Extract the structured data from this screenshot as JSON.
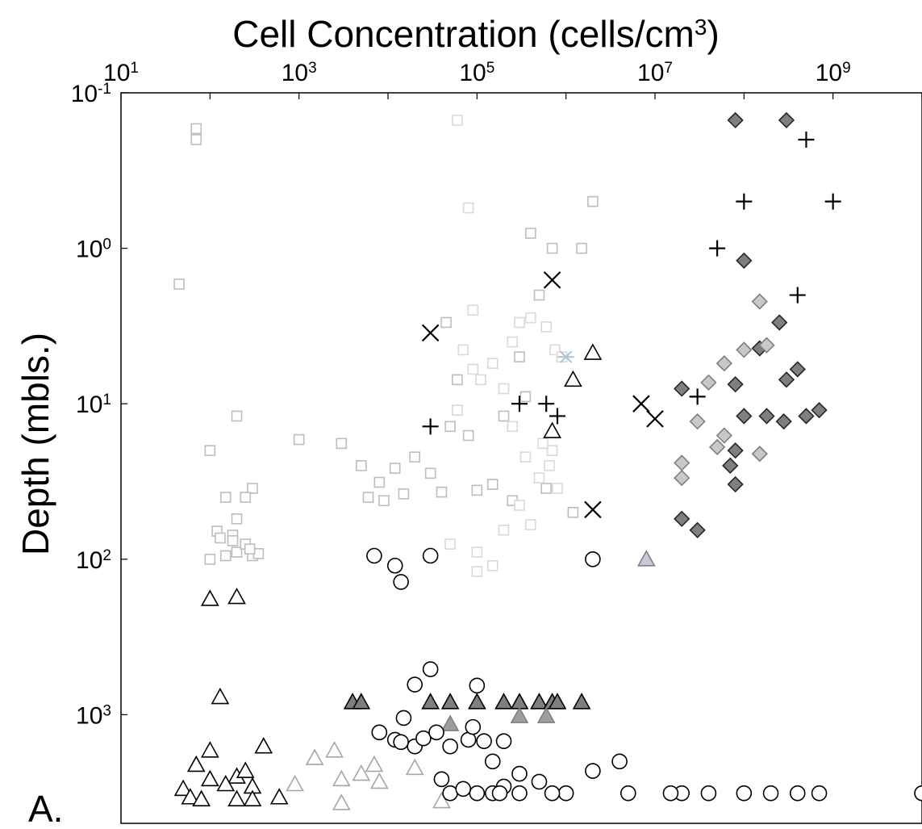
{
  "panel_label": "A.",
  "chart_data": {
    "type": "scatter",
    "title": "Cell Concentration (cells/cm3)",
    "title_main": "Cell Concentration (cells/cm",
    "title_sup": "3",
    "title_end": ")",
    "xlabel": "",
    "ylabel": "Depth (mbls.)",
    "x_scale": "log",
    "y_scale": "log",
    "y_inverted": true,
    "x_axis_position": "top",
    "xlim": [
      10,
      10000000000
    ],
    "ylim": [
      0.1,
      5000
    ],
    "grid": false,
    "legend": "none",
    "x_ticks": [
      {
        "base": "10",
        "exp": "1",
        "value": 10
      },
      {
        "base": "10",
        "exp": "3",
        "value": 1000
      },
      {
        "base": "10",
        "exp": "5",
        "value": 100000
      },
      {
        "base": "10",
        "exp": "7",
        "value": 10000000
      },
      {
        "base": "10",
        "exp": "9",
        "value": 1000000000
      }
    ],
    "y_ticks": [
      {
        "base": "10",
        "exp": "-1",
        "value": 0.1
      },
      {
        "base": "10",
        "exp": "0",
        "value": 1
      },
      {
        "base": "10",
        "exp": "1",
        "value": 10
      },
      {
        "base": "10",
        "exp": "2",
        "value": 100
      },
      {
        "base": "10",
        "exp": "3",
        "value": 1000
      }
    ],
    "series": [
      {
        "marker": "square",
        "fill": "#ffffff",
        "stroke": "#bdbdbd",
        "points": [
          [
            70,
            0.17
          ],
          [
            70,
            0.2
          ],
          [
            45,
            1.7
          ],
          [
            200,
            12
          ],
          [
            100,
            20
          ],
          [
            300,
            35
          ],
          [
            250,
            40
          ],
          [
            150,
            40
          ],
          [
            200,
            55
          ],
          [
            180,
            70
          ],
          [
            120,
            66
          ],
          [
            130,
            73
          ],
          [
            180,
            76
          ],
          [
            200,
            90
          ],
          [
            300,
            95
          ],
          [
            100,
            100
          ],
          [
            150,
            95
          ],
          [
            350,
            92
          ],
          [
            250,
            80
          ],
          [
            280,
            86
          ],
          [
            1000,
            17
          ],
          [
            3000,
            18
          ],
          [
            5000,
            25
          ],
          [
            8000,
            32
          ],
          [
            12000,
            26
          ],
          [
            20000,
            22
          ],
          [
            30000,
            28
          ],
          [
            50000,
            14
          ],
          [
            80000,
            16
          ],
          [
            150000,
            33
          ],
          [
            200000,
            12
          ],
          [
            300000,
            5
          ],
          [
            500000,
            2
          ],
          [
            700000,
            1
          ],
          [
            400000,
            0.8
          ],
          [
            60000,
            7
          ],
          [
            6000,
            40
          ],
          [
            9000,
            42
          ],
          [
            15000,
            38
          ],
          [
            40000,
            37
          ],
          [
            100000,
            36
          ],
          [
            250000,
            42
          ],
          [
            600000,
            35
          ],
          [
            350000,
            9
          ],
          [
            45000,
            3
          ],
          [
            1500000,
            1
          ],
          [
            2000000,
            0.5
          ],
          [
            1200000,
            50
          ]
        ]
      },
      {
        "marker": "square",
        "fill": "#ffffff",
        "stroke": "#d9d9d9",
        "points": [
          [
            60000,
            0.15
          ],
          [
            80000,
            0.55
          ],
          [
            90000,
            2.5
          ],
          [
            70000,
            4.5
          ],
          [
            110000,
            7
          ],
          [
            60000,
            11
          ],
          [
            200000,
            8
          ],
          [
            90000,
            6
          ],
          [
            150000,
            5.5
          ],
          [
            300000,
            3
          ],
          [
            400000,
            2.8
          ],
          [
            250000,
            4
          ],
          [
            600000,
            3.2
          ],
          [
            750000,
            4.5
          ],
          [
            900000,
            5
          ],
          [
            700000,
            20
          ],
          [
            500000,
            30
          ],
          [
            400000,
            60
          ],
          [
            200000,
            65
          ],
          [
            100000,
            90
          ],
          [
            50000,
            80
          ],
          [
            300000,
            45
          ],
          [
            800000,
            35
          ],
          [
            100000,
            120
          ],
          [
            150000,
            110
          ],
          [
            250000,
            14
          ],
          [
            350000,
            22
          ],
          [
            550000,
            18
          ],
          [
            650000,
            25
          ]
        ]
      },
      {
        "marker": "triangle",
        "fill": "#ffffff",
        "stroke": "#000000",
        "points": [
          [
            100,
            180
          ],
          [
            200,
            175
          ],
          [
            130,
            770
          ],
          [
            100,
            1700
          ],
          [
            70,
            2100
          ],
          [
            50,
            3000
          ],
          [
            100,
            2600
          ],
          [
            200,
            2500
          ],
          [
            400,
            1600
          ],
          [
            150,
            2800
          ],
          [
            250,
            2300
          ],
          [
            300,
            2900
          ],
          [
            60,
            3400
          ],
          [
            80,
            3500
          ],
          [
            200,
            3500
          ],
          [
            300,
            3500
          ],
          [
            600,
            3400
          ],
          [
            2000000,
            4.7
          ],
          [
            1200000,
            7
          ],
          [
            700000,
            15
          ]
        ]
      },
      {
        "marker": "triangle",
        "fill": "#ffffff",
        "stroke": "#a6a6a6",
        "points": [
          [
            900,
            2800
          ],
          [
            1500,
            1900
          ],
          [
            2500,
            1700
          ],
          [
            3000,
            2600
          ],
          [
            5000,
            2400
          ],
          [
            7000,
            2100
          ],
          [
            8000,
            2700
          ],
          [
            3000,
            3700
          ],
          [
            40000,
            3600
          ],
          [
            20000,
            2200
          ]
        ]
      },
      {
        "marker": "triangle",
        "fill": "#7f7f7f",
        "stroke": "#000000",
        "points": [
          [
            4000,
            830
          ],
          [
            5000,
            830
          ],
          [
            30000,
            830
          ],
          [
            50000,
            830
          ],
          [
            100000,
            830
          ],
          [
            200000,
            830
          ],
          [
            300000,
            830
          ],
          [
            500000,
            830
          ],
          [
            700000,
            830
          ],
          [
            800000,
            830
          ],
          [
            1500000,
            830
          ]
        ]
      },
      {
        "marker": "triangle",
        "fill": "#9e9e9e",
        "stroke": "#7f7f7f",
        "points": [
          [
            300000,
            1020
          ],
          [
            600000,
            1020
          ],
          [
            50000,
            1150
          ]
        ]
      },
      {
        "marker": "triangle",
        "fill": "#c8c8dc",
        "stroke": "#7f7f7f",
        "points": [
          [
            8000000,
            100
          ]
        ]
      },
      {
        "marker": "circle",
        "fill": "#ffffff",
        "stroke": "#000000",
        "points": [
          [
            7000,
            95
          ],
          [
            14000,
            140
          ],
          [
            12000,
            110
          ],
          [
            30000,
            95
          ],
          [
            2000000,
            100
          ],
          [
            30000,
            510
          ],
          [
            20000,
            640
          ],
          [
            15000,
            1050
          ],
          [
            100000,
            650
          ],
          [
            8000,
            1300
          ],
          [
            12000,
            1450
          ],
          [
            14000,
            1500
          ],
          [
            20000,
            1600
          ],
          [
            25000,
            1420
          ],
          [
            35000,
            1300
          ],
          [
            50000,
            1600
          ],
          [
            80000,
            1450
          ],
          [
            120000,
            1480
          ],
          [
            200000,
            1480
          ],
          [
            150000,
            2000
          ],
          [
            90000,
            1200
          ],
          [
            300000,
            2400
          ],
          [
            50000,
            3200
          ],
          [
            100000,
            3200
          ],
          [
            300000,
            3200
          ],
          [
            1000000,
            3200
          ],
          [
            5000000,
            3200
          ],
          [
            20000000,
            3200
          ],
          [
            100000000,
            3200
          ],
          [
            400000000,
            3200
          ],
          [
            10000000000,
            3200
          ],
          [
            4000000,
            2000
          ],
          [
            2000000,
            2300
          ],
          [
            500000,
            2700
          ],
          [
            200000,
            2900
          ],
          [
            40000,
            2600
          ],
          [
            70000,
            3000
          ],
          [
            150000,
            3200
          ],
          [
            180000,
            3200
          ],
          [
            700000,
            3200
          ],
          [
            15000000,
            3200
          ],
          [
            40000000,
            3200
          ],
          [
            200000000,
            3200
          ],
          [
            700000000,
            3200
          ]
        ]
      },
      {
        "marker": "diamond",
        "fill": "#7f7f7f",
        "stroke": "#262626",
        "points": [
          [
            80000000,
            0.15
          ],
          [
            300000000,
            0.15
          ],
          [
            100000000,
            1.2
          ],
          [
            20000000,
            8
          ],
          [
            80000000,
            7.5
          ],
          [
            300000000,
            7
          ],
          [
            400000000,
            6
          ],
          [
            150000000,
            4.4
          ],
          [
            250000000,
            3
          ],
          [
            500000000,
            12
          ],
          [
            700000000,
            11
          ],
          [
            100000000,
            12
          ],
          [
            80000000,
            20
          ],
          [
            70000000,
            25
          ],
          [
            20000000,
            55
          ],
          [
            30000000,
            65
          ],
          [
            180000000,
            12
          ],
          [
            280000000,
            13
          ],
          [
            80000000,
            33
          ]
        ]
      },
      {
        "marker": "diamond",
        "fill": "#c8c8c8",
        "stroke": "#7f7f7f",
        "points": [
          [
            150000000,
            2.2
          ],
          [
            100000000,
            4.5
          ],
          [
            30000000,
            13
          ],
          [
            60000000,
            16
          ],
          [
            50000000,
            19
          ],
          [
            150000000,
            21
          ],
          [
            20000000,
            24
          ],
          [
            20000000,
            30
          ],
          [
            40000000,
            7.3
          ],
          [
            180000000,
            4.2
          ],
          [
            60000000,
            5.5
          ]
        ]
      },
      {
        "marker": "plus",
        "fill": "none",
        "stroke": "#000000",
        "points": [
          [
            500000000,
            0.2
          ],
          [
            100000000,
            0.5
          ],
          [
            1000000000,
            0.5
          ],
          [
            50000000,
            1
          ],
          [
            400000000,
            2
          ],
          [
            30000000,
            9
          ],
          [
            30000,
            14
          ],
          [
            300000,
            10
          ],
          [
            600000,
            10
          ],
          [
            800000,
            12
          ]
        ]
      },
      {
        "marker": "x",
        "fill": "none",
        "stroke": "#000000",
        "points": [
          [
            700000,
            1.6
          ],
          [
            30000,
            3.5
          ],
          [
            7000000,
            10
          ],
          [
            10000000,
            12.5
          ],
          [
            2000000,
            48
          ]
        ]
      },
      {
        "marker": "asterisk",
        "fill": "none",
        "stroke": "#a9c4d4",
        "points": [
          [
            1000000,
            5
          ]
        ]
      }
    ]
  }
}
